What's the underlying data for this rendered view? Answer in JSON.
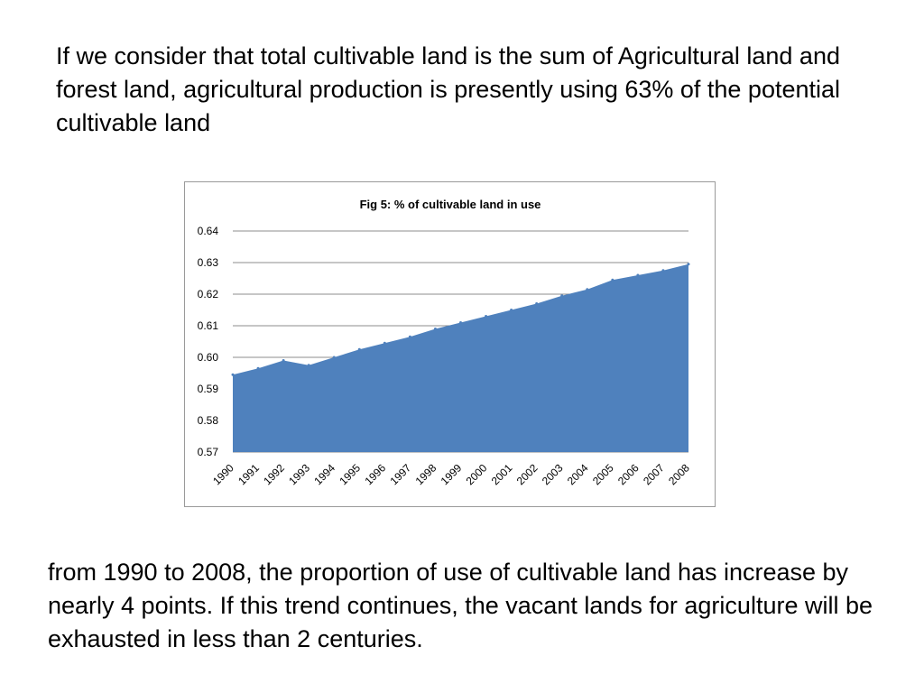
{
  "intro": {
    "text": "If we consider that total cultivable land is the sum of Agricultural land and forest land, agricultural production is presently using 63% of the potential cultivable land"
  },
  "conclusion": {
    "text": "from 1990 to 2008, the proportion of use of cultivable land has increase by nearly 4 points. If this trend continues, the vacant lands for agriculture will be exhausted in less than 2 centuries."
  },
  "colors": {
    "area_fill": "#4f81bd",
    "gridline": "#8c8c8c",
    "frame_border": "#9a9a9a"
  },
  "chart_data": {
    "type": "area",
    "title": "Fig 5: % of cultivable land in use",
    "xlabel": "",
    "ylabel": "",
    "categories": [
      "1990",
      "1991",
      "1992",
      "1993",
      "1994",
      "1995",
      "1996",
      "1997",
      "1998",
      "1999",
      "2000",
      "2001",
      "2002",
      "2003",
      "2004",
      "2005",
      "2006",
      "2007",
      "2008"
    ],
    "series": [
      {
        "name": "% of cultivable land in use",
        "values": [
          0.5945,
          0.5965,
          0.599,
          0.5975,
          0.6,
          0.6025,
          0.6045,
          0.6065,
          0.609,
          0.611,
          0.613,
          0.615,
          0.617,
          0.6195,
          0.6215,
          0.6245,
          0.626,
          0.6275,
          0.6295
        ]
      }
    ],
    "ylim": [
      0.57,
      0.64
    ],
    "yticks": [
      "0.57",
      "0.58",
      "0.59",
      "0.60",
      "0.61",
      "0.62",
      "0.63",
      "0.64"
    ],
    "grid": true,
    "legend": "none"
  }
}
